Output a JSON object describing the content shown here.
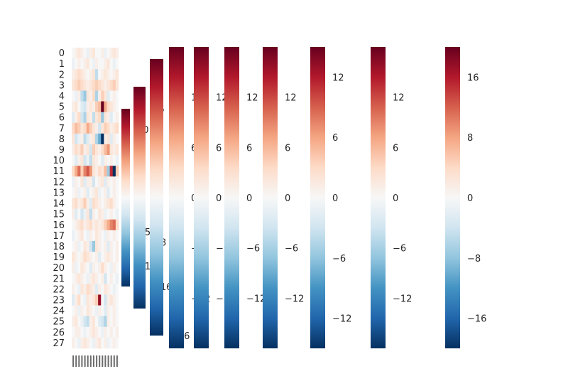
{
  "chart_data": {
    "type": "heatmap",
    "title": "",
    "colormap": "RdBu_r",
    "heatmap": {
      "row_labels": [
        "0",
        "1",
        "2",
        "3",
        "4",
        "5",
        "6",
        "7",
        "8",
        "9",
        "10",
        "11",
        "12",
        "13",
        "14",
        "15",
        "16",
        "17",
        "18",
        "19",
        "20",
        "21",
        "22",
        "23",
        "24",
        "25",
        "26",
        "27"
      ],
      "column_count": 16,
      "column_labels_note": "tick labels overlap and are unreadable",
      "value_range": [
        -16,
        16
      ],
      "values": [
        [
          0,
          1,
          2,
          1,
          0,
          -1,
          1,
          2,
          0,
          0,
          1,
          -1,
          0,
          1,
          2,
          1
        ],
        [
          -1,
          0,
          1,
          0,
          1,
          2,
          0,
          -1,
          1,
          0,
          0,
          1,
          2,
          0,
          -1,
          0
        ],
        [
          1,
          2,
          3,
          2,
          1,
          0,
          1,
          2,
          -4,
          0,
          1,
          2,
          1,
          0,
          1,
          2
        ],
        [
          2,
          3,
          4,
          3,
          2,
          1,
          2,
          3,
          4,
          3,
          2,
          1,
          2,
          3,
          4,
          2
        ],
        [
          0,
          -1,
          1,
          -4,
          -6,
          2,
          1,
          3,
          -5,
          1,
          4,
          2,
          -2,
          0,
          1,
          0
        ],
        [
          1,
          2,
          0,
          -2,
          -3,
          1,
          2,
          1,
          4,
          5,
          18,
          6,
          3,
          2,
          1,
          0
        ],
        [
          -2,
          1,
          3,
          -3,
          -5,
          2,
          1,
          -4,
          2,
          3,
          -6,
          2,
          1,
          -2,
          0,
          1
        ],
        [
          3,
          5,
          4,
          2,
          3,
          6,
          4,
          2,
          1,
          -3,
          2,
          4,
          3,
          1,
          2,
          3
        ],
        [
          2,
          -3,
          -1,
          1,
          -4,
          -2,
          1,
          2,
          -5,
          -8,
          -16,
          1,
          2,
          -2,
          1,
          0
        ],
        [
          1,
          3,
          2,
          4,
          1,
          2,
          -3,
          4,
          2,
          1,
          3,
          5,
          7,
          2,
          1,
          2
        ],
        [
          0,
          -2,
          1,
          2,
          -3,
          -1,
          -4,
          2,
          1,
          0,
          -2,
          1,
          0,
          1,
          0,
          -1
        ],
        [
          3,
          6,
          9,
          4,
          8,
          10,
          7,
          2,
          1,
          3,
          2,
          5,
          -6,
          12,
          -16,
          4
        ],
        [
          -1,
          1,
          0,
          2,
          -2,
          1,
          1,
          -3,
          0,
          1,
          2,
          -2,
          1,
          0,
          1,
          0
        ],
        [
          0,
          1,
          -1,
          0,
          1,
          -2,
          0,
          1,
          2,
          -1,
          0,
          1,
          -2,
          0,
          1,
          0
        ],
        [
          2,
          3,
          1,
          2,
          4,
          1,
          -2,
          3,
          2,
          1,
          0,
          1,
          2,
          3,
          1,
          0
        ],
        [
          1,
          -2,
          0,
          -3,
          -1,
          2,
          -4,
          1,
          0,
          2,
          1,
          -1,
          0,
          1,
          0,
          -1
        ],
        [
          0,
          1,
          2,
          3,
          1,
          2,
          3,
          1,
          2,
          1,
          2,
          4,
          6,
          8,
          9,
          3
        ],
        [
          -1,
          0,
          1,
          2,
          0,
          -1,
          1,
          0,
          2,
          1,
          0,
          -1,
          1,
          0,
          1,
          0
        ],
        [
          0,
          1,
          -1,
          0,
          2,
          1,
          -3,
          -6,
          2,
          1,
          0,
          1,
          -2,
          1,
          0,
          1
        ],
        [
          2,
          1,
          0,
          1,
          3,
          2,
          1,
          0,
          1,
          -2,
          0,
          1,
          2,
          1,
          0,
          1
        ],
        [
          1,
          -1,
          0,
          2,
          1,
          0,
          -2,
          1,
          0,
          1,
          3,
          1,
          0,
          -1,
          1,
          0
        ],
        [
          0,
          1,
          2,
          1,
          0,
          -1,
          1,
          2,
          1,
          0,
          1,
          -3,
          0,
          1,
          0,
          -1
        ],
        [
          1,
          0,
          -1,
          2,
          1,
          3,
          2,
          1,
          -2,
          1,
          0,
          2,
          1,
          0,
          -1,
          0
        ],
        [
          -2,
          1,
          3,
          0,
          -1,
          2,
          1,
          2,
          4,
          14,
          0,
          -3,
          1,
          2,
          1,
          0
        ],
        [
          0,
          1,
          -1,
          1,
          0,
          2,
          1,
          0,
          -1,
          1,
          0,
          -2,
          1,
          0,
          1,
          0
        ],
        [
          1,
          2,
          0,
          -1,
          -3,
          -4,
          1,
          2,
          0,
          -2,
          -3,
          -5,
          1,
          0,
          1,
          0
        ],
        [
          0,
          1,
          1,
          0,
          -1,
          0,
          1,
          2,
          1,
          0,
          -1,
          1,
          0,
          1,
          0,
          1
        ],
        [
          1,
          0,
          -1,
          1,
          2,
          1,
          0,
          -1,
          1,
          2,
          0,
          1,
          -1,
          0,
          1,
          0
        ]
      ]
    },
    "colorbars": [
      {
        "name": "colorbar-1",
        "range": [
          -13,
          13
        ],
        "ticks": [
          "−10",
          "−5",
          "0",
          "5",
          "10"
        ]
      },
      {
        "name": "colorbar-2",
        "range": [
          -20,
          20
        ],
        "ticks": [
          "−16",
          "−8",
          "0",
          "8",
          "16"
        ]
      },
      {
        "name": "colorbar-3",
        "range": [
          -16,
          16
        ],
        "ticks": [
          "−16",
          "−8",
          "0",
          "8",
          "16"
        ]
      },
      {
        "name": "colorbar-4",
        "range": [
          -18,
          18
        ],
        "ticks": [
          "−12",
          "−6",
          "0",
          "6",
          "12"
        ]
      },
      {
        "name": "colorbar-5",
        "range": [
          -18,
          18
        ],
        "ticks": [
          "−12",
          "−6",
          "0",
          "6",
          "12"
        ]
      },
      {
        "name": "colorbar-6",
        "range": [
          -18,
          18
        ],
        "ticks": [
          "−12",
          "−6",
          "0",
          "6",
          "12"
        ]
      },
      {
        "name": "colorbar-7",
        "range": [
          -18,
          18
        ],
        "ticks": [
          "−12",
          "−6",
          "0",
          "6",
          "12"
        ]
      },
      {
        "name": "colorbar-8",
        "range": [
          -15,
          15
        ],
        "ticks": [
          "−12",
          "−6",
          "0",
          "6",
          "12"
        ]
      },
      {
        "name": "colorbar-9",
        "range": [
          -18,
          18
        ],
        "ticks": [
          "−12",
          "−6",
          "0",
          "6",
          "12"
        ]
      },
      {
        "name": "colorbar-10",
        "range": [
          -20,
          20
        ],
        "ticks": [
          "−16",
          "−8",
          "0",
          "8",
          "16"
        ]
      },
      {
        "name": "colorbar-11",
        "range": [
          -20,
          20
        ],
        "ticks": [
          "−16",
          "−8",
          "0",
          "8",
          "16"
        ]
      }
    ]
  }
}
